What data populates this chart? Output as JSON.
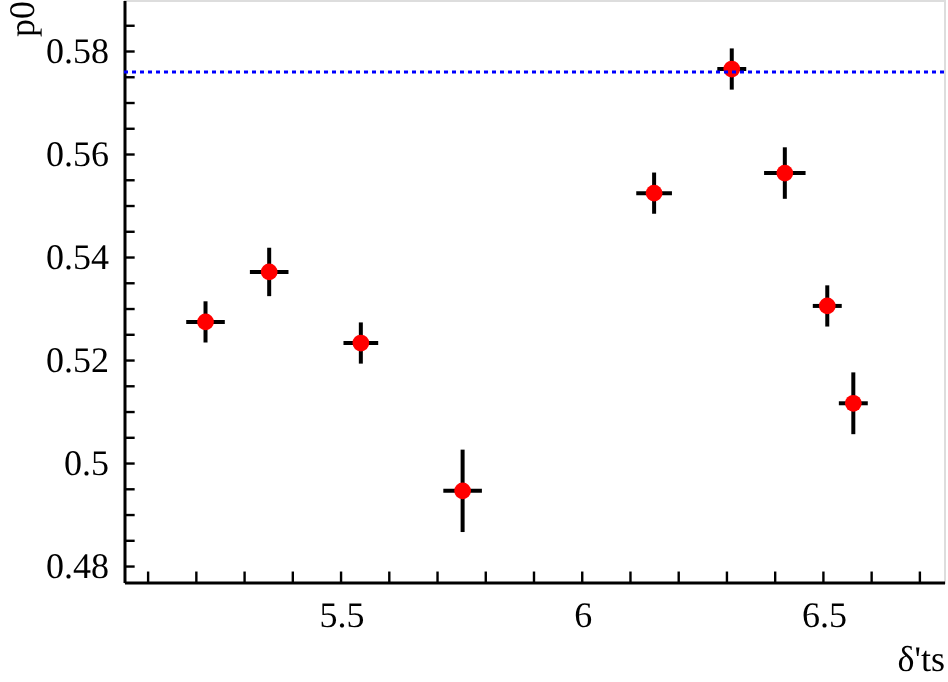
{
  "chart_data": {
    "type": "scatter",
    "xlabel": "δ'ts",
    "ylabel": "p0",
    "x": [
      5.219,
      5.351,
      5.541,
      5.752,
      6.149,
      6.31,
      6.42,
      6.508,
      6.562
    ],
    "series": [
      {
        "color": "#ff0000",
        "values": [
          0.5275,
          0.5372,
          0.5234,
          0.4947,
          0.5525,
          0.5766,
          0.5564,
          0.5306,
          0.5117
        ],
        "errors": [
          0.004,
          0.0047,
          0.004,
          0.008,
          0.004,
          0.004,
          0.005,
          0.004,
          0.006
        ],
        "xerrors": [
          0.04,
          0.04,
          0.036,
          0.04,
          0.037,
          0.03,
          0.043,
          0.03,
          0.03
        ]
      }
    ],
    "xlim": [
      5.05,
      6.75
    ],
    "ylim": [
      0.477,
      0.59
    ],
    "xticks": [
      {
        "value": 5.1,
        "label": null
      },
      {
        "value": 5.2,
        "label": null
      },
      {
        "value": 5.3,
        "label": null
      },
      {
        "value": 5.4,
        "label": null
      },
      5.5,
      {
        "value": 5.6,
        "label": null
      },
      {
        "value": 5.7,
        "label": null
      },
      {
        "value": 5.8,
        "label": null
      },
      {
        "value": 5.9,
        "label": null
      },
      6,
      {
        "value": 6.1,
        "label": null
      },
      {
        "value": 6.2,
        "label": null
      },
      {
        "value": 6.3,
        "label": null
      },
      {
        "value": 6.4,
        "label": null
      },
      6.5,
      {
        "value": 6.6,
        "label": null
      },
      {
        "value": 6.7,
        "label": null
      }
    ],
    "yticks": [
      0.48,
      {
        "value": 0.485,
        "label": null
      },
      {
        "value": 0.49,
        "label": null
      },
      {
        "value": 0.495,
        "label": null
      },
      0.5,
      {
        "value": 0.505,
        "label": null
      },
      {
        "value": 0.51,
        "label": null
      },
      {
        "value": 0.515,
        "label": null
      },
      0.52,
      {
        "value": 0.525,
        "label": null
      },
      {
        "value": 0.53,
        "label": null
      },
      {
        "value": 0.535,
        "label": null
      },
      0.54,
      {
        "value": 0.545,
        "label": null
      },
      {
        "value": 0.55,
        "label": null
      },
      {
        "value": 0.555,
        "label": null
      },
      0.56,
      {
        "value": 0.565,
        "label": null
      },
      {
        "value": 0.57,
        "label": null
      },
      {
        "value": 0.575,
        "label": null
      },
      0.58,
      {
        "value": 0.585,
        "label": null
      }
    ],
    "ref_lines": [
      {
        "axis": "y",
        "value": 0.576,
        "color": "#0000ff",
        "line_style": "dotted"
      }
    ],
    "marker": "circle",
    "grid": false
  }
}
